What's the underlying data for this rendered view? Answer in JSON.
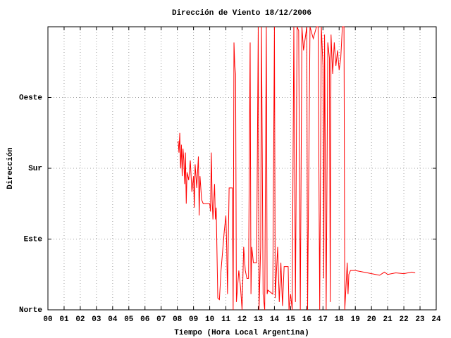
{
  "chart_data": {
    "type": "line",
    "title": "Dirección de Viento 18/12/2006",
    "x_label": "Tiempo (Hora Local Argentina)",
    "y_label": "Dirección",
    "xlim": [
      0,
      24
    ],
    "xticks": [
      {
        "value": 0,
        "label": "00"
      },
      {
        "value": 1,
        "label": "01"
      },
      {
        "value": 2,
        "label": "02"
      },
      {
        "value": 3,
        "label": "03"
      },
      {
        "value": 4,
        "label": "04"
      },
      {
        "value": 5,
        "label": "05"
      },
      {
        "value": 6,
        "label": "06"
      },
      {
        "value": 7,
        "label": "07"
      },
      {
        "value": 8,
        "label": "08"
      },
      {
        "value": 9,
        "label": "09"
      },
      10,
      11,
      12,
      13,
      14,
      15,
      16,
      17,
      18,
      19,
      20,
      21,
      22,
      23,
      24
    ],
    "ylim": [
      0,
      360
    ],
    "yticks": [
      {
        "value": 0,
        "label": "Norte"
      },
      {
        "value": 90,
        "label": "Este"
      },
      {
        "value": 180,
        "label": "Sur"
      },
      {
        "value": 270,
        "label": "Oeste"
      }
    ],
    "grid": true,
    "x": [
      8.05,
      8.1,
      8.15,
      8.2,
      8.25,
      8.3,
      8.35,
      8.4,
      8.45,
      8.5,
      8.55,
      8.6,
      8.7,
      8.8,
      8.9,
      9.0,
      9.05,
      9.1,
      9.2,
      9.3,
      9.35,
      9.4,
      9.5,
      9.6,
      9.7,
      10.0,
      10.05,
      10.1,
      10.15,
      10.2,
      10.3,
      10.35,
      10.4,
      10.5,
      10.6,
      10.7,
      10.9,
      11.0,
      11.05,
      11.1,
      11.2,
      11.4,
      11.45,
      11.5,
      11.55,
      11.6,
      11.65,
      11.8,
      11.9,
      12.0,
      12.1,
      12.2,
      12.3,
      12.4,
      12.5,
      12.55,
      12.6,
      12.7,
      12.9,
      13.0,
      13.05,
      13.15,
      13.2,
      13.3,
      13.4,
      13.5,
      13.55,
      13.6,
      13.9,
      14.0,
      14.05,
      14.2,
      14.3,
      14.4,
      14.5,
      14.6,
      14.7,
      14.85,
      14.9,
      15.0,
      15.1,
      15.2,
      15.3,
      15.4,
      15.5,
      15.6,
      15.7,
      15.8,
      16.0,
      16.05,
      16.2,
      16.4,
      16.6,
      16.7,
      16.8,
      16.9,
      17.0,
      17.05,
      17.1,
      17.2,
      17.3,
      17.4,
      17.45,
      17.5,
      17.6,
      17.7,
      17.8,
      17.9,
      18.0,
      18.1,
      18.2,
      18.3,
      18.35,
      18.4,
      18.5,
      18.55,
      18.6,
      18.7,
      19.0,
      19.5,
      20.0,
      20.5,
      20.8,
      21.0,
      21.5,
      22.0,
      22.5,
      22.7
    ],
    "series": [
      {
        "color": "#ff0000",
        "values": [
          215,
          200,
          225,
          180,
          210,
          170,
          205,
          190,
          160,
          200,
          135,
          175,
          165,
          190,
          150,
          170,
          130,
          185,
          155,
          195,
          120,
          170,
          140,
          135,
          135,
          135,
          125,
          200,
          140,
          115,
          160,
          115,
          130,
          15,
          13,
          50,
          100,
          120,
          80,
          20,
          155,
          155,
          0,
          340,
          310,
          300,
          10,
          50,
          30,
          0,
          80,
          50,
          40,
          40,
          340,
          20,
          80,
          60,
          60,
          360,
          0,
          80,
          360,
          20,
          0,
          360,
          20,
          25,
          20,
          360,
          15,
          80,
          10,
          60,
          5,
          55,
          55,
          55,
          0,
          20,
          0,
          360,
          10,
          360,
          355,
          0,
          360,
          330,
          360,
          0,
          360,
          345,
          360,
          360,
          0,
          360,
          310,
          40,
          350,
          0,
          340,
          320,
          10,
          350,
          300,
          340,
          310,
          330,
          305,
          320,
          360,
          360,
          0,
          20,
          60,
          20,
          45,
          50,
          50,
          48,
          46,
          44,
          48,
          45,
          47,
          46,
          48,
          47
        ]
      }
    ]
  }
}
